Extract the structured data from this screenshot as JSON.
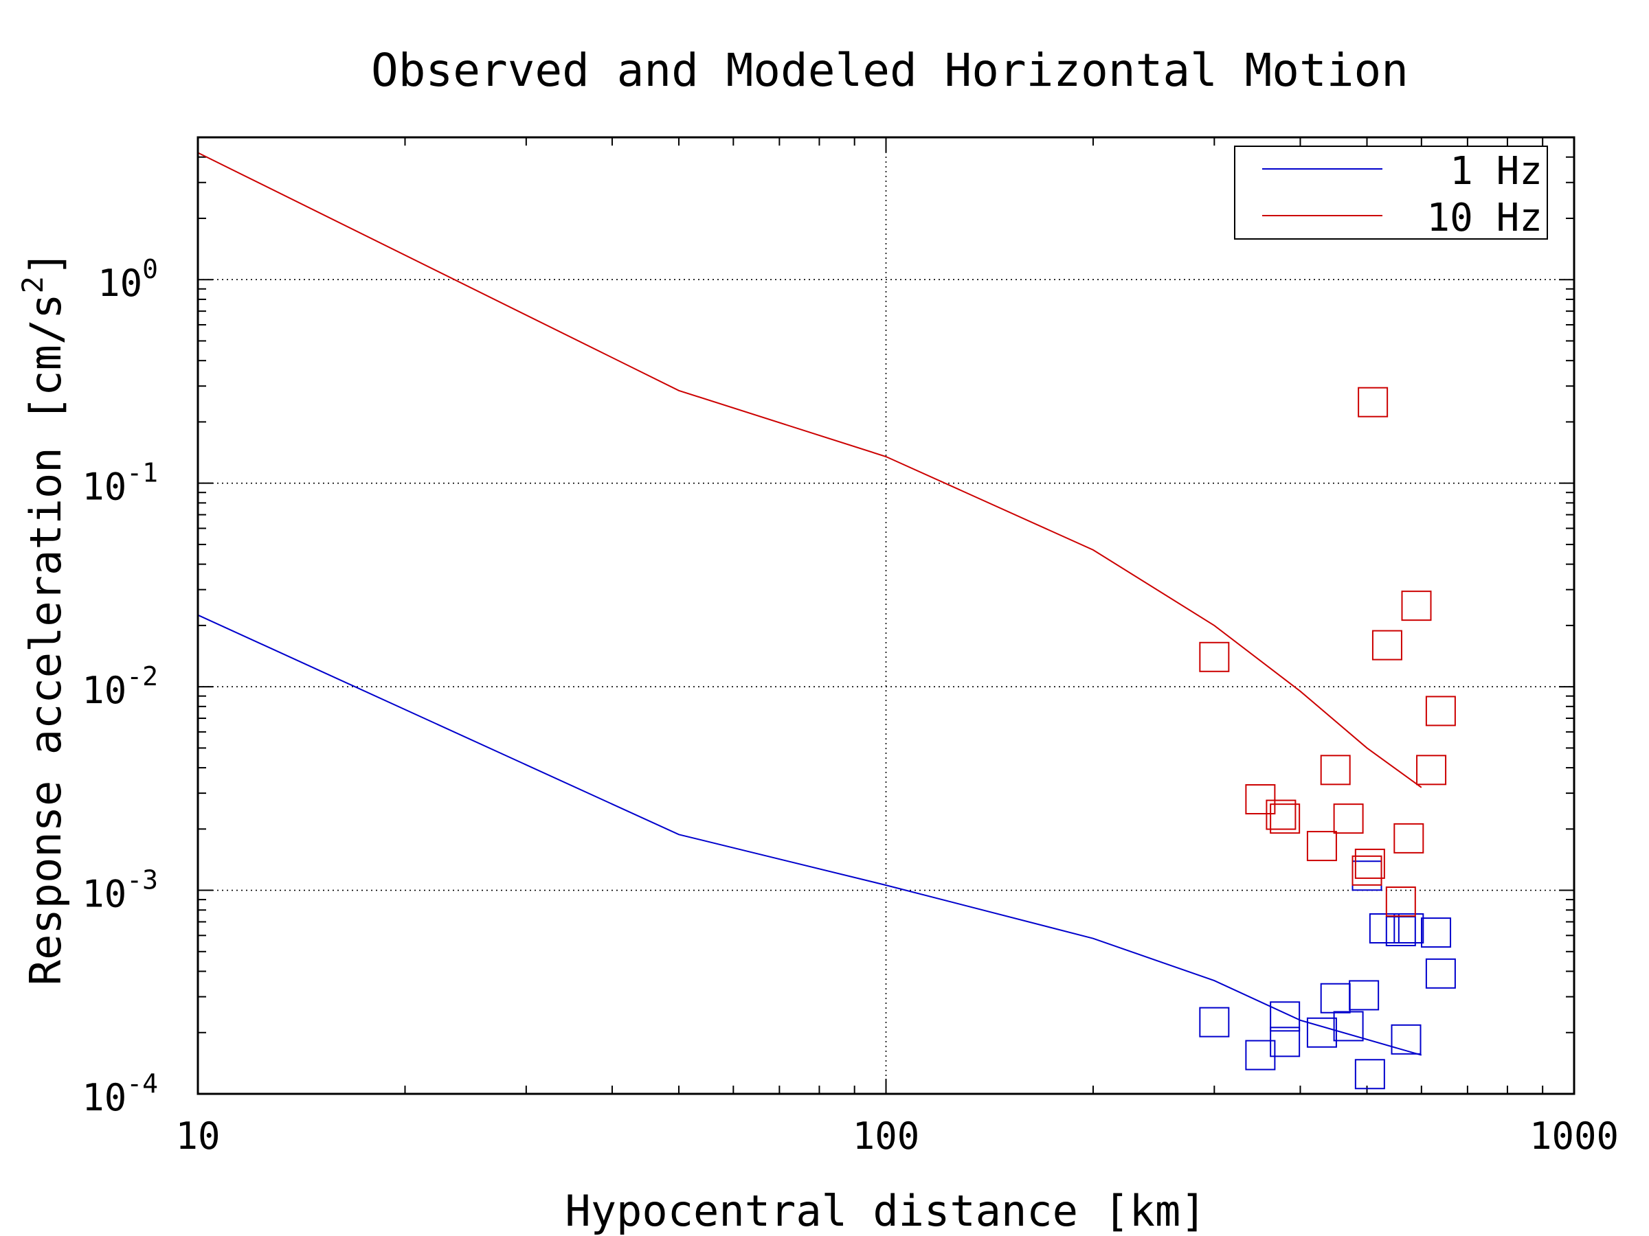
{
  "chart_data": {
    "type": "line",
    "title": "Observed and Modeled Horizontal Motion",
    "xlabel": "Hypocentral distance [km]",
    "ylabel": "Response acceleration [cm/s",
    "ylabel_sup": "2",
    "ylabel_end": "]",
    "x_scale": "log",
    "y_scale": "log",
    "xlim": [
      10,
      1000
    ],
    "ylim": [
      0.0001,
      5
    ],
    "x_ticks": [
      {
        "value": 10,
        "label": "10"
      },
      {
        "value": 100,
        "label": "100"
      },
      {
        "value": 1000,
        "label": "1000"
      }
    ],
    "y_ticks": [
      {
        "value": 0.0001,
        "base": "10",
        "exp": "-4"
      },
      {
        "value": 0.001,
        "base": "10",
        "exp": "-3"
      },
      {
        "value": 0.01,
        "base": "10",
        "exp": "-2"
      },
      {
        "value": 0.1,
        "base": "10",
        "exp": "-1"
      },
      {
        "value": 1,
        "base": "10",
        "exp": "0"
      }
    ],
    "grid": true,
    "legend_position": "top-right",
    "series": [
      {
        "name": "1 Hz",
        "color": "#0000cc",
        "line": [
          [
            10,
            0.0225
          ],
          [
            50,
            0.00188
          ],
          [
            100,
            0.00106
          ],
          [
            200,
            0.00058
          ],
          [
            300,
            0.00036
          ],
          [
            400,
            0.00023
          ],
          [
            600,
            0.000155
          ]
        ],
        "observed": [
          [
            300,
            0.000225
          ],
          [
            350,
            0.000155
          ],
          [
            380,
            0.00018
          ],
          [
            380,
            0.00024
          ],
          [
            430,
            0.0002
          ],
          [
            450,
            0.000295
          ],
          [
            470,
            0.000215
          ],
          [
            495,
            0.000305
          ],
          [
            505,
            0.000125
          ],
          [
            500,
            0.00118
          ],
          [
            530,
            0.00065
          ],
          [
            560,
            0.00063
          ],
          [
            570,
            0.000185
          ],
          [
            575,
            0.00065
          ],
          [
            630,
            0.00062
          ],
          [
            640,
            0.00039
          ]
        ]
      },
      {
        "name": "10 Hz",
        "color": "#cc0000",
        "line": [
          [
            10,
            4.2
          ],
          [
            50,
            0.285
          ],
          [
            100,
            0.135
          ],
          [
            200,
            0.047
          ],
          [
            300,
            0.02
          ],
          [
            400,
            0.0095
          ],
          [
            500,
            0.005
          ],
          [
            600,
            0.0032
          ]
        ],
        "observed": [
          [
            300,
            0.014
          ],
          [
            350,
            0.0028
          ],
          [
            375,
            0.00235
          ],
          [
            380,
            0.00225
          ],
          [
            430,
            0.00165
          ],
          [
            450,
            0.0039
          ],
          [
            470,
            0.00225
          ],
          [
            500,
            0.00125
          ],
          [
            505,
            0.00135
          ],
          [
            510,
            0.25
          ],
          [
            535,
            0.016
          ],
          [
            560,
            0.00088
          ],
          [
            575,
            0.0018
          ],
          [
            590,
            0.025
          ],
          [
            620,
            0.0039
          ],
          [
            640,
            0.0076
          ]
        ]
      }
    ]
  }
}
